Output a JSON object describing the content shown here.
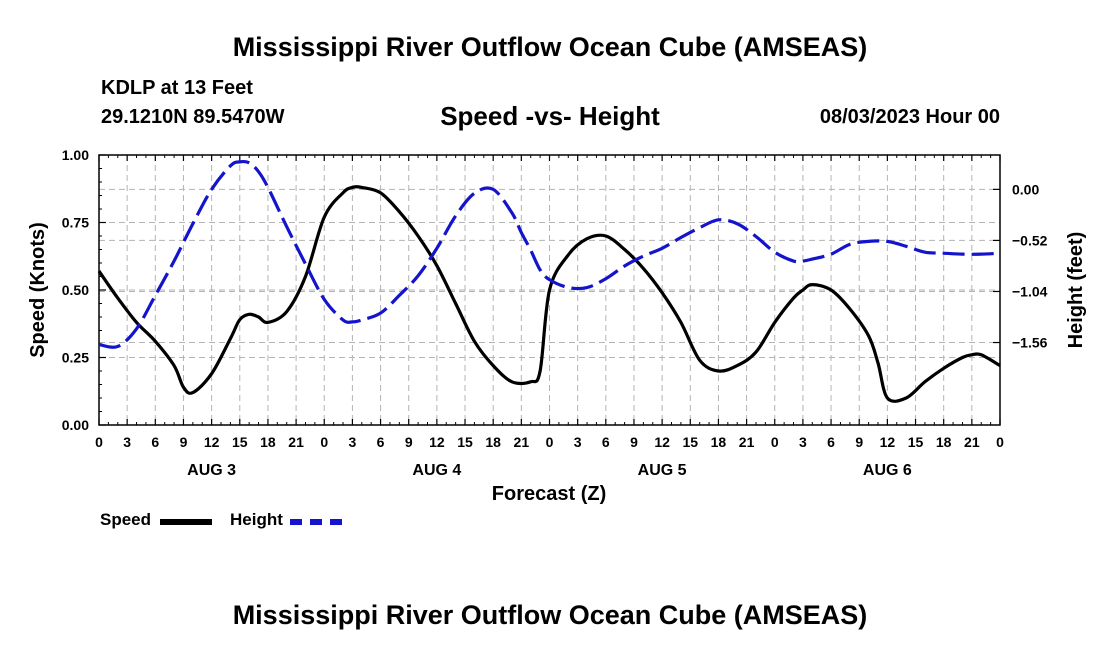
{
  "page": {
    "main_title": "Mississippi River Outflow Ocean Cube (AMSEAS)",
    "footer_title": "Mississippi River Outflow Ocean Cube (AMSEAS)",
    "station_label": "KDLP at 13 Feet",
    "coordinates": "29.1210N  89.5470W",
    "plot_title": "Speed -vs- Height",
    "datetime": "08/03/2023 Hour 00"
  },
  "legend": [
    {
      "name": "Speed",
      "color": "#000000"
    },
    {
      "name": "Height",
      "color": "#1414cc"
    }
  ],
  "chart_data": {
    "type": "line",
    "title": "Speed -vs- Height",
    "xlabel": "Forecast (Z)",
    "ylabel": "Speed (Knots)",
    "y2label": "Height (feet)",
    "xlim": [
      0,
      96
    ],
    "ylim": [
      0,
      1
    ],
    "y2lim": [
      -2.4,
      0.35
    ],
    "grid": true,
    "legend_position": "bottom-left",
    "x_tick_labels": [
      "0",
      "3",
      "6",
      "9",
      "12",
      "15",
      "18",
      "21",
      "0",
      "3",
      "6",
      "9",
      "12",
      "15",
      "18",
      "21",
      "0",
      "3",
      "6",
      "9",
      "12",
      "15",
      "18",
      "21",
      "0",
      "3",
      "6",
      "9",
      "12",
      "15",
      "18",
      "21",
      "0"
    ],
    "x_tick_values": [
      0,
      3,
      6,
      9,
      12,
      15,
      18,
      21,
      24,
      27,
      30,
      33,
      36,
      39,
      42,
      45,
      48,
      51,
      54,
      57,
      60,
      63,
      66,
      69,
      72,
      75,
      78,
      81,
      84,
      87,
      90,
      93,
      96
    ],
    "date_labels": [
      {
        "label": "AUG 3",
        "x": 12
      },
      {
        "label": "AUG 4",
        "x": 36
      },
      {
        "label": "AUG 5",
        "x": 60
      },
      {
        "label": "AUG 6",
        "x": 84
      }
    ],
    "y_ticks": [
      "0.00",
      "0.25",
      "0.50",
      "0.75",
      "1.00"
    ],
    "y_tick_values": [
      0,
      0.25,
      0.5,
      0.75,
      1.0
    ],
    "y2_ticks": [
      "0.00",
      "−0.52",
      "−1.04",
      "−1.56"
    ],
    "y2_tick_values": [
      0.0,
      -0.52,
      -1.04,
      -1.56
    ],
    "series": [
      {
        "name": "Speed",
        "axis": "left",
        "color": "#000000",
        "x": [
          0,
          2,
          4,
          6,
          8,
          9,
          10,
          12,
          14,
          15,
          16,
          17,
          18,
          20,
          22,
          24,
          26,
          27,
          28,
          30,
          32,
          34,
          36,
          38,
          40,
          42,
          44,
          46,
          47,
          48,
          50,
          52,
          54,
          56,
          58,
          60,
          62,
          64,
          66,
          68,
          70,
          72,
          74,
          75,
          76,
          78,
          80,
          82,
          83,
          84,
          86,
          88,
          90,
          92,
          93,
          94,
          96
        ],
        "values": [
          0.57,
          0.47,
          0.38,
          0.31,
          0.22,
          0.14,
          0.12,
          0.19,
          0.32,
          0.39,
          0.41,
          0.4,
          0.38,
          0.42,
          0.55,
          0.77,
          0.86,
          0.88,
          0.88,
          0.86,
          0.79,
          0.7,
          0.59,
          0.45,
          0.31,
          0.22,
          0.16,
          0.16,
          0.2,
          0.5,
          0.63,
          0.69,
          0.7,
          0.65,
          0.58,
          0.49,
          0.38,
          0.24,
          0.2,
          0.22,
          0.27,
          0.38,
          0.47,
          0.5,
          0.52,
          0.5,
          0.43,
          0.33,
          0.23,
          0.1,
          0.1,
          0.16,
          0.21,
          0.25,
          0.26,
          0.26,
          0.22
        ]
      },
      {
        "name": "Height",
        "axis": "right",
        "color": "#1414cc",
        "dashed": true,
        "x": [
          0,
          2,
          4,
          6,
          8,
          10,
          12,
          14,
          15,
          16,
          17,
          18,
          20,
          22,
          24,
          26,
          27,
          28,
          30,
          32,
          34,
          36,
          38,
          40,
          42,
          44,
          45,
          46,
          47,
          48,
          50,
          52,
          54,
          56,
          58,
          60,
          62,
          64,
          66,
          68,
          70,
          72,
          74,
          75,
          76,
          78,
          80,
          82,
          84,
          86,
          88,
          90,
          92,
          94,
          96
        ],
        "values": [
          -1.58,
          -1.6,
          -1.42,
          -1.08,
          -0.73,
          -0.35,
          0.0,
          0.24,
          0.28,
          0.27,
          0.18,
          0.02,
          -0.38,
          -0.76,
          -1.12,
          -1.33,
          -1.35,
          -1.33,
          -1.26,
          -1.08,
          -0.88,
          -0.6,
          -0.27,
          -0.04,
          0.0,
          -0.24,
          -0.44,
          -0.62,
          -0.82,
          -0.92,
          -1.0,
          -1.0,
          -0.91,
          -0.78,
          -0.68,
          -0.6,
          -0.49,
          -0.39,
          -0.31,
          -0.35,
          -0.48,
          -0.64,
          -0.73,
          -0.73,
          -0.71,
          -0.66,
          -0.56,
          -0.53,
          -0.53,
          -0.58,
          -0.64,
          -0.65,
          -0.66,
          -0.66,
          -0.65
        ]
      }
    ]
  }
}
